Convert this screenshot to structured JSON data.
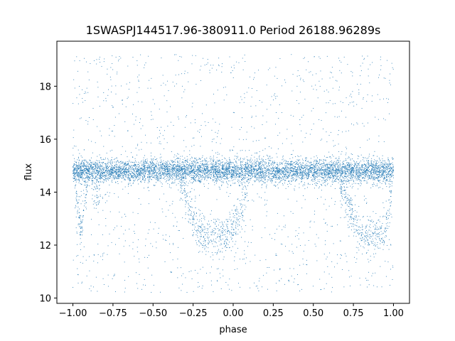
{
  "chart_data": {
    "type": "scatter",
    "title": "1SWASPJ144517.96-380911.0 Period 26188.96289s",
    "xlabel": "phase",
    "ylabel": "flux",
    "xlim": [
      -1.1,
      1.1
    ],
    "ylim": [
      9.8,
      19.7
    ],
    "xticks": [
      -1.0,
      -0.75,
      -0.5,
      -0.25,
      0.0,
      0.25,
      0.5,
      0.75,
      1.0
    ],
    "xtick_labels": [
      "−1.00",
      "−0.75",
      "−0.50",
      "−0.25",
      "0.00",
      "0.25",
      "0.50",
      "0.75",
      "1.00"
    ],
    "yticks": [
      10,
      12,
      14,
      16,
      18
    ],
    "ytick_labels": [
      "10",
      "12",
      "14",
      "16",
      "18"
    ],
    "grid": false,
    "point_color": "#1f77b4",
    "series": [
      {
        "description_free_points": true,
        "points": [
          [
            -1.0,
            14.8
          ],
          [
            -0.95,
            12.5
          ],
          [
            -0.9,
            14.7
          ],
          [
            -0.85,
            13.8
          ],
          [
            -0.8,
            14.9
          ],
          [
            -0.75,
            14.6
          ],
          [
            -0.7,
            14.8
          ],
          [
            -0.65,
            15.0
          ],
          [
            -0.6,
            14.7
          ],
          [
            -0.55,
            14.9
          ],
          [
            -0.5,
            14.8
          ],
          [
            -0.45,
            14.6
          ],
          [
            -0.4,
            14.9
          ],
          [
            -0.35,
            14.7
          ],
          [
            -0.3,
            13.9
          ],
          [
            -0.25,
            13.0
          ],
          [
            -0.2,
            12.4
          ],
          [
            -0.15,
            12.3
          ],
          [
            -0.1,
            12.3
          ],
          [
            -0.05,
            12.4
          ],
          [
            0.0,
            12.6
          ],
          [
            0.05,
            13.2
          ],
          [
            0.1,
            14.5
          ],
          [
            0.15,
            14.8
          ],
          [
            0.2,
            14.9
          ],
          [
            0.25,
            14.7
          ],
          [
            0.3,
            14.8
          ],
          [
            0.35,
            14.9
          ],
          [
            0.4,
            14.7
          ],
          [
            0.45,
            14.8
          ],
          [
            0.5,
            14.6
          ],
          [
            0.55,
            14.8
          ],
          [
            0.6,
            14.9
          ],
          [
            0.65,
            14.7
          ],
          [
            0.7,
            13.8
          ],
          [
            0.75,
            13.0
          ],
          [
            0.8,
            12.4
          ],
          [
            0.85,
            12.3
          ],
          [
            0.9,
            12.4
          ],
          [
            0.95,
            12.5
          ],
          [
            1.0,
            14.8
          ]
        ]
      }
    ]
  }
}
